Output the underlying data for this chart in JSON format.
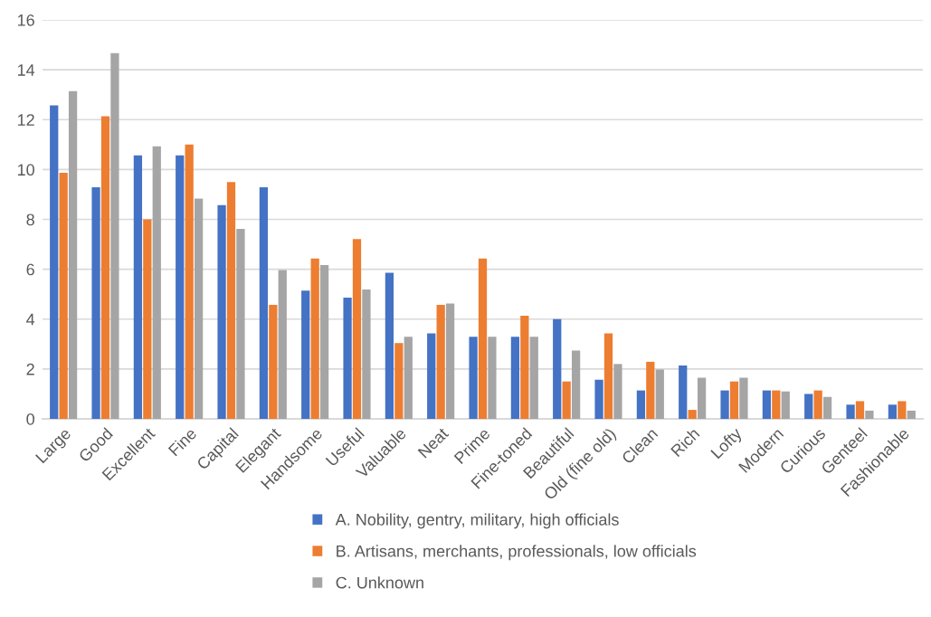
{
  "chart_data": {
    "type": "bar",
    "categories": [
      "Large",
      "Good",
      "Excellent",
      "Fine",
      "Capital",
      "Elegant",
      "Handsome",
      "Useful",
      "Valuable",
      "Neat",
      "Prime",
      "Fine-toned",
      "Beautiful",
      "Old (fine old)",
      "Clean",
      "Rich",
      "Lofty",
      "Modern",
      "Curious",
      "Genteel",
      "Fashionable"
    ],
    "series": [
      {
        "name": "A. Nobility, gentry, military, high officials",
        "color": "#4472c4",
        "values": [
          12.57,
          9.29,
          10.57,
          10.57,
          8.57,
          9.29,
          5.14,
          4.86,
          5.86,
          3.43,
          3.29,
          3.29,
          4.0,
          1.57,
          1.14,
          2.14,
          1.14,
          1.14,
          1.0,
          0.57,
          0.57
        ]
      },
      {
        "name": "B. Artisans, merchants, professionals, low officials",
        "color": "#ed7d31",
        "values": [
          9.87,
          12.14,
          8.0,
          11.0,
          9.5,
          4.57,
          6.43,
          7.21,
          3.04,
          4.57,
          6.43,
          4.14,
          1.5,
          3.43,
          2.29,
          0.36,
          1.5,
          1.14,
          1.14,
          0.71,
          0.71
        ]
      },
      {
        "name": "C. Unknown",
        "color": "#a5a5a5",
        "values": [
          13.14,
          14.67,
          10.93,
          8.83,
          7.62,
          5.97,
          6.17,
          5.19,
          3.29,
          4.63,
          3.29,
          3.29,
          2.74,
          2.2,
          1.98,
          1.65,
          1.65,
          1.1,
          0.88,
          0.33,
          0.33
        ]
      }
    ],
    "ylim": [
      0,
      16
    ],
    "yticks": [
      0,
      2,
      4,
      6,
      8,
      10,
      12,
      14,
      16
    ],
    "grid": "y",
    "legend": "bottom"
  }
}
